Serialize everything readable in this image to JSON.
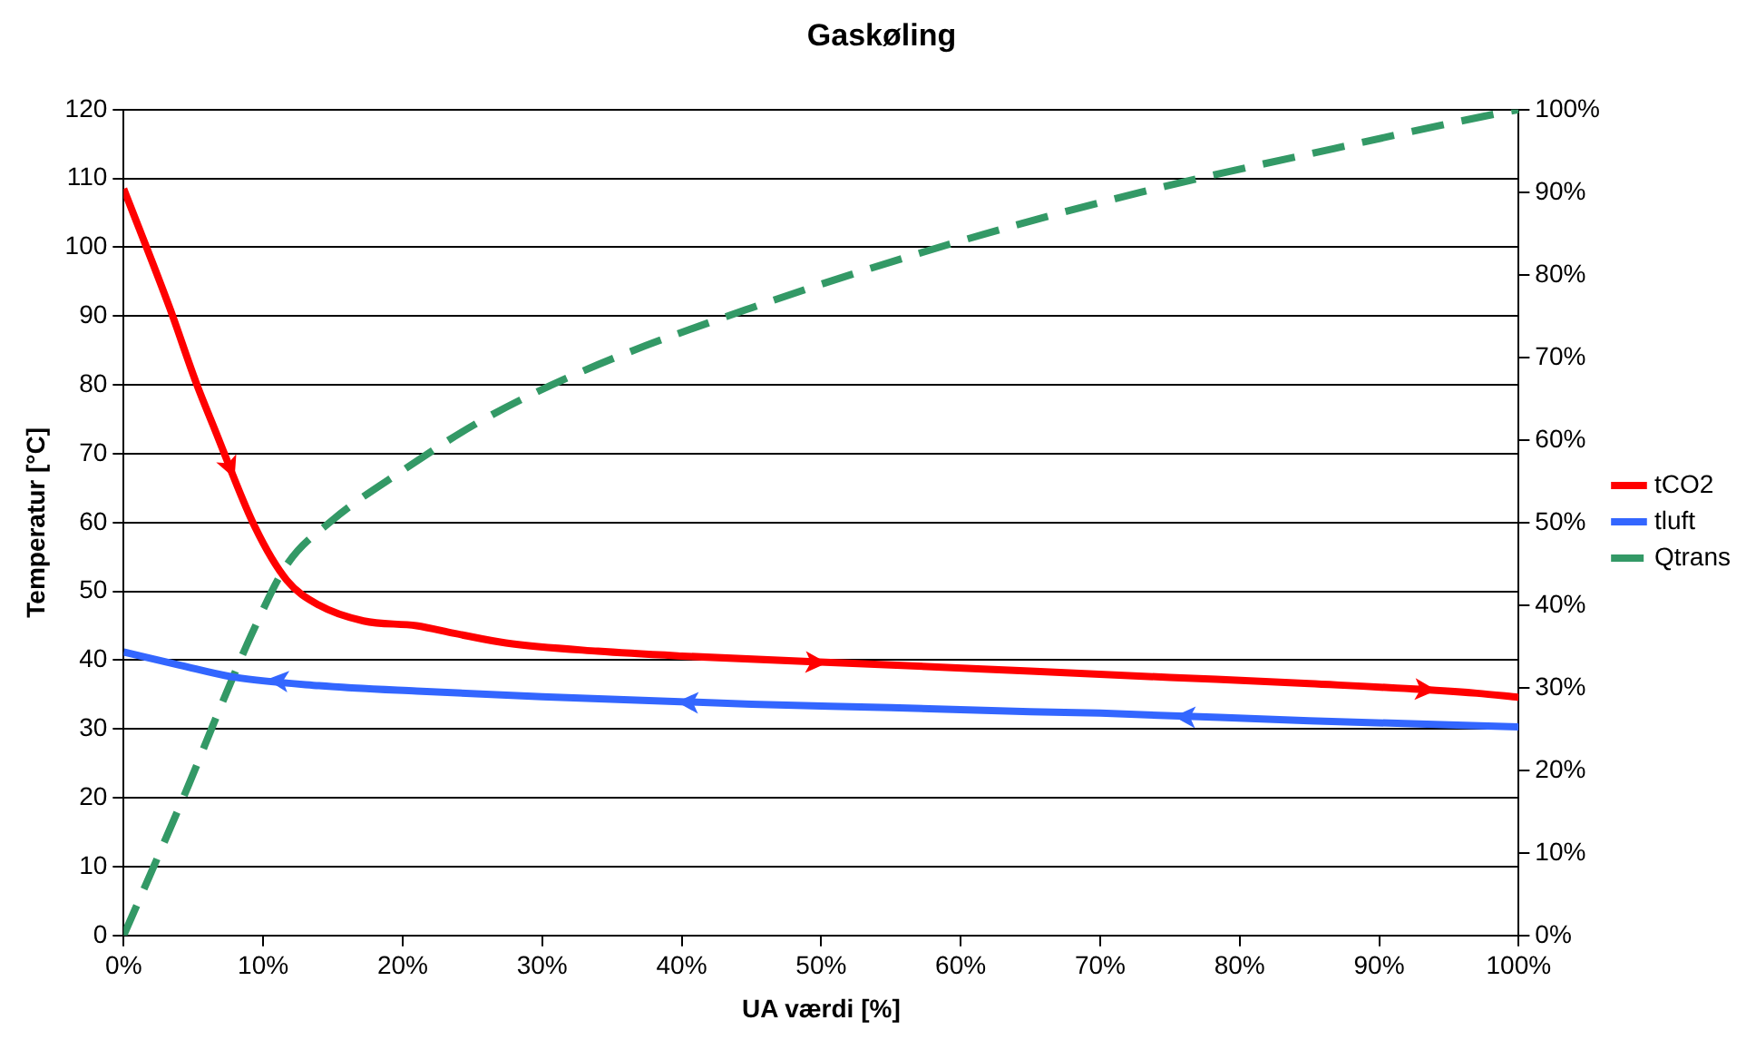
{
  "chart_data": {
    "type": "line",
    "title": "Gaskøling",
    "xlabel": "UA værdi [%]",
    "ylabel": "Temperatur [°C]",
    "xlim": [
      0,
      100
    ],
    "xticks": [
      {
        "value": 0,
        "label": "0%"
      },
      {
        "value": 10,
        "label": "10%"
      },
      {
        "value": 20,
        "label": "20%"
      },
      {
        "value": 30,
        "label": "30%"
      },
      {
        "value": 40,
        "label": "40%"
      },
      {
        "value": 50,
        "label": "50%"
      },
      {
        "value": 60,
        "label": "60%"
      },
      {
        "value": 70,
        "label": "70%"
      },
      {
        "value": 80,
        "label": "80%"
      },
      {
        "value": 90,
        "label": "90%"
      },
      {
        "value": 100,
        "label": "100%"
      }
    ],
    "ylim": [
      0,
      120
    ],
    "yticks": [
      0,
      10,
      20,
      30,
      40,
      50,
      60,
      70,
      80,
      90,
      100,
      110,
      120
    ],
    "y2lim": [
      0,
      100
    ],
    "y2ticks": [
      {
        "value": 0,
        "label": "0%"
      },
      {
        "value": 10,
        "label": "10%"
      },
      {
        "value": 20,
        "label": "20%"
      },
      {
        "value": 30,
        "label": "30%"
      },
      {
        "value": 40,
        "label": "40%"
      },
      {
        "value": 50,
        "label": "50%"
      },
      {
        "value": 60,
        "label": "60%"
      },
      {
        "value": 70,
        "label": "70%"
      },
      {
        "value": 80,
        "label": "80%"
      },
      {
        "value": 90,
        "label": "90%"
      },
      {
        "value": 100,
        "label": "100%"
      }
    ],
    "grid": "y",
    "legend": "right",
    "marker": "none",
    "series": [
      {
        "name": "tCO2",
        "color": "#ff0000",
        "line_style": "solid",
        "x": [
          0,
          3.3,
          5.2,
          6.5,
          9.4,
          11.7,
          14,
          17.2,
          21,
          23.7,
          27.4,
          34,
          40,
          55,
          65,
          75,
          85,
          97,
          100
        ],
        "values": [
          108.5,
          91.2,
          80.3,
          73.7,
          59.4,
          51.6,
          48,
          45.7,
          45,
          43.9,
          42.5,
          41.3,
          40.6,
          39.3,
          38.4,
          37.5,
          36.6,
          35.2,
          34.6
        ]
      },
      {
        "name": "tluft",
        "color": "#3366ff",
        "line_style": "solid",
        "x": [
          0,
          4,
          8,
          14,
          21,
          30,
          45,
          55,
          65,
          70,
          85,
          100
        ],
        "values": [
          41.2,
          39.3,
          37.5,
          36.3,
          35.5,
          34.7,
          33.6,
          33.1,
          32.5,
          32.3,
          31.2,
          30.3
        ]
      },
      {
        "name": "Qtrans",
        "color": "#339966",
        "line_style": "dashed",
        "axis": "y2",
        "x": [
          0,
          2.4,
          4.7,
          7,
          9.4,
          11.7,
          14.9,
          20,
          25.6,
          33,
          45,
          59,
          72.9,
          86.8,
          98.4,
          100
        ],
        "values": [
          0,
          9.3,
          18.4,
          27.9,
          37.3,
          44.9,
          50.2,
          56.3,
          62.3,
          68.4,
          76,
          83.6,
          90,
          95.3,
          99.5,
          100
        ]
      }
    ]
  }
}
